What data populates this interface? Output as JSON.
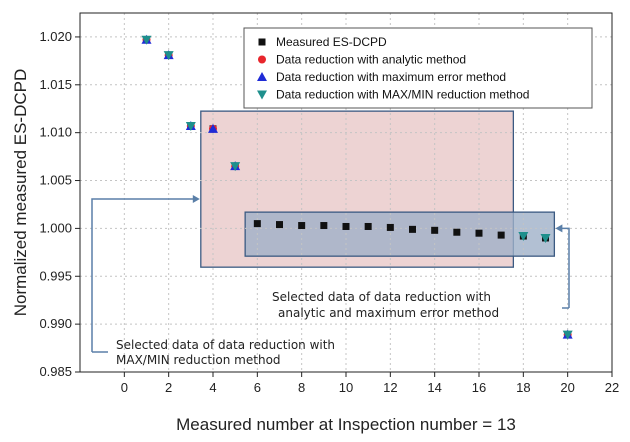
{
  "chart_data": {
    "type": "scatter",
    "title": "",
    "xlabel": "Measured number at Inspection number = 13",
    "ylabel": "Normalized measured ES-DCPD",
    "xlim": [
      -2,
      22
    ],
    "ylim": [
      0.985,
      1.0225
    ],
    "xticks": [
      0,
      2,
      4,
      6,
      8,
      10,
      12,
      14,
      16,
      18,
      20,
      22
    ],
    "yticks": [
      0.985,
      0.99,
      0.995,
      1.0,
      1.005,
      1.01,
      1.015,
      1.02
    ],
    "ytick_labels": [
      "0.985",
      "0.990",
      "0.995",
      "1.000",
      "1.005",
      "1.010",
      "1.015",
      "1.020"
    ],
    "grid": true,
    "legend_position": "top-right",
    "series": [
      {
        "name": "Measured ES-DCPD",
        "marker": "square",
        "color": "#111111",
        "x": [
          1,
          2,
          3,
          4,
          5,
          6,
          7,
          8,
          9,
          10,
          11,
          12,
          13,
          14,
          15,
          16,
          17,
          18,
          19,
          20
        ],
        "y": [
          1.0197,
          1.0181,
          1.0107,
          1.0104,
          1.0065,
          1.0005,
          1.0004,
          1.0003,
          1.0003,
          1.0002,
          1.0002,
          1.0001,
          0.9999,
          0.9998,
          0.9996,
          0.9995,
          0.9993,
          0.9992,
          0.999,
          0.9889
        ]
      },
      {
        "name": "Data reduction with analytic method",
        "marker": "circle",
        "color": "#e8262c",
        "x": [
          1,
          2,
          3,
          4,
          5,
          20
        ],
        "y": [
          1.0197,
          1.0181,
          1.0107,
          1.0104,
          1.0065,
          0.9889
        ]
      },
      {
        "name": "Data reduction with maximum error method",
        "marker": "triangle-up",
        "color": "#1f2bd6",
        "x": [
          1,
          2,
          3,
          4,
          5,
          20
        ],
        "y": [
          1.0197,
          1.0181,
          1.0107,
          1.0104,
          1.0065,
          0.9889
        ]
      },
      {
        "name": "Data reduction with MAX/MIN reduction method",
        "marker": "triangle-down",
        "color": "#1e8f8c",
        "x": [
          1,
          2,
          3,
          5,
          18,
          19,
          20
        ],
        "y": [
          1.0197,
          1.0181,
          1.0107,
          1.0065,
          0.9992,
          0.999,
          0.9889
        ]
      }
    ],
    "annotations": [
      {
        "name": "max-min-region",
        "text": [
          "Selected data of data reduction with",
          "MAX/MIN reduction method"
        ],
        "fill": "#e8c8c8",
        "x_range": [
          3.45,
          17.55
        ],
        "y_range": [
          0.99595,
          1.01225
        ]
      },
      {
        "name": "analytic-region",
        "text": [
          "Selected data of data reduction with",
          "analytic and maximum error method"
        ],
        "fill": "#9fb0c8",
        "x_range": [
          5.45,
          19.4
        ],
        "y_range": [
          0.9971,
          1.0017
        ]
      }
    ]
  }
}
